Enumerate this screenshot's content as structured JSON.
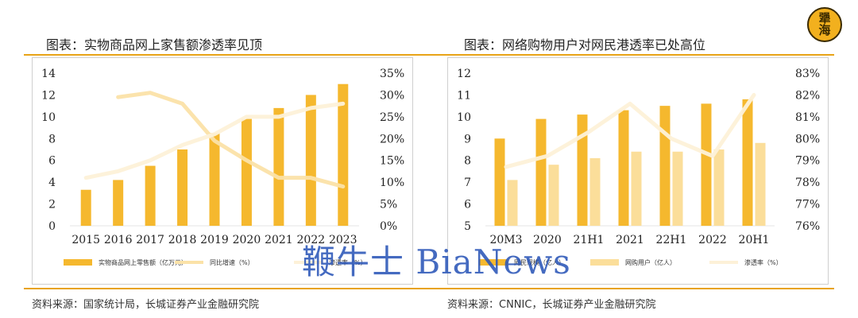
{
  "logo": {
    "text_top": "犟",
    "text_bottom": "海"
  },
  "left": {
    "title": "图表：实物商品网上家售额渗透率见顶",
    "source": "资料来源：国家统计局，长城证券产业金融研究院",
    "chart_data": {
      "type": "bar",
      "categories": [
        "2015",
        "2016",
        "2017",
        "2018",
        "2019",
        "2020",
        "2021",
        "2022",
        "2023"
      ],
      "y_left": {
        "min": 0,
        "max": 14,
        "ticks": [
          "0",
          "2",
          "4",
          "6",
          "8",
          "10",
          "12",
          "14"
        ]
      },
      "y_right": {
        "min": 0,
        "max": 35,
        "ticks": [
          "0%",
          "5%",
          "10%",
          "15%",
          "20%",
          "25%",
          "30%",
          "35%"
        ]
      },
      "series": [
        {
          "name": "实物商品网上零售额（亿万元）",
          "kind": "bar",
          "axis": "left",
          "color": "#F5B82E",
          "values": [
            3.3,
            4.2,
            5.5,
            7.0,
            8.5,
            9.8,
            10.8,
            12.0,
            13.0
          ]
        },
        {
          "name": "同比增速（%）",
          "kind": "line",
          "axis": "right",
          "color": "#FBE2A8",
          "values": [
            null,
            29.5,
            30.5,
            28.0,
            19.5,
            15.0,
            11.0,
            11.0,
            9.0
          ]
        },
        {
          "name": "渗透率（%）",
          "kind": "line",
          "axis": "right",
          "color": "#FDF1D8",
          "values": [
            11.0,
            12.5,
            15.0,
            18.5,
            21.0,
            25.0,
            25.0,
            27.0,
            28.0
          ]
        }
      ]
    }
  },
  "right": {
    "title": "图表：网络购物用户对网民港透率已处高位",
    "source": "资料来源：CNNIC，长城证券产业金融研究院",
    "chart_data": {
      "type": "bar",
      "categories": [
        "20M3",
        "2020",
        "21H1",
        "2021",
        "22H1",
        "2022",
        "20H1"
      ],
      "y_left": {
        "min": 5,
        "max": 12,
        "ticks": [
          "5",
          "6",
          "7",
          "8",
          "9",
          "10",
          "11",
          "12"
        ]
      },
      "y_right": {
        "min": 76,
        "max": 83,
        "ticks": [
          "76%",
          "77%",
          "78%",
          "79%",
          "80%",
          "81%",
          "82%",
          "83%"
        ]
      },
      "series": [
        {
          "name": "网民规模（亿人）",
          "kind": "bar",
          "axis": "left",
          "color": "#F5B82E",
          "values": [
            9.0,
            9.9,
            10.1,
            10.3,
            10.5,
            10.6,
            10.8
          ]
        },
        {
          "name": "网购用户（亿人）",
          "kind": "bar",
          "axis": "left",
          "color": "#FBDE9A",
          "values": [
            7.1,
            7.8,
            8.1,
            8.4,
            8.4,
            8.5,
            8.8
          ]
        },
        {
          "name": "渗透率（%）",
          "kind": "line",
          "axis": "right",
          "color": "#FDF1D8",
          "values": [
            78.7,
            79.2,
            80.3,
            81.6,
            80.0,
            79.2,
            82.0
          ]
        }
      ]
    }
  },
  "watermark": "鞭牛士 BiaNews"
}
